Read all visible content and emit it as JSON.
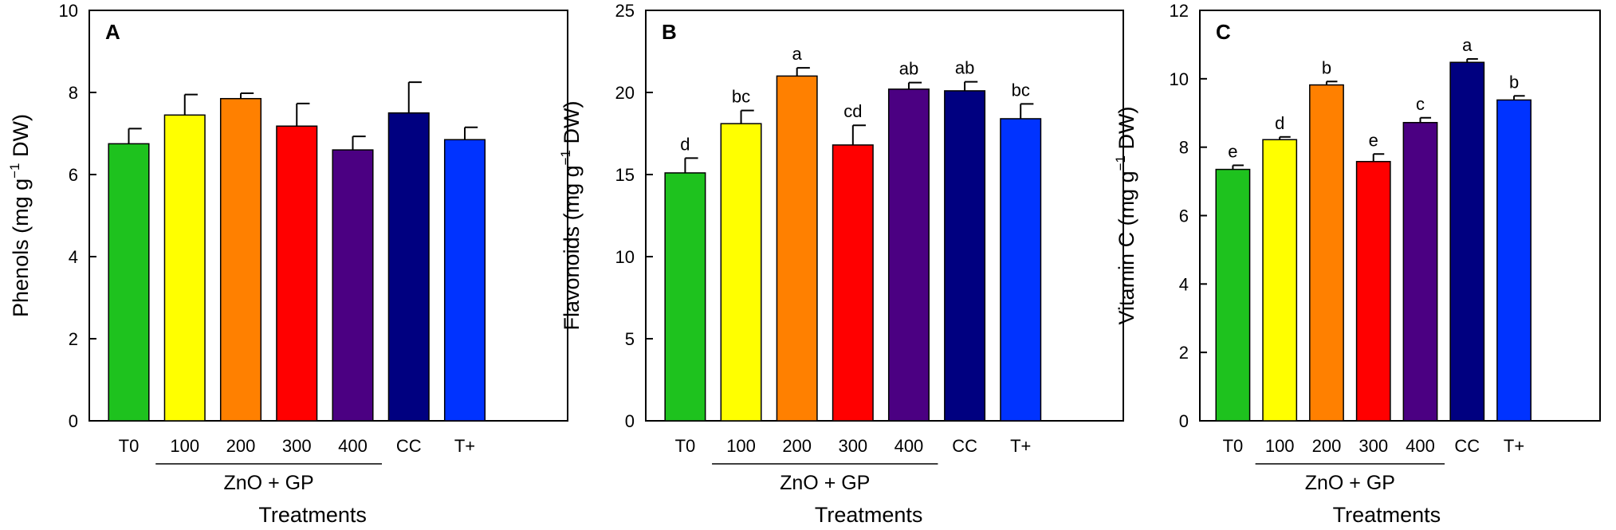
{
  "chart_data": [
    {
      "type": "bar",
      "panel": "A",
      "categories": [
        "T0",
        "100",
        "200",
        "300",
        "400",
        "CC",
        "T+"
      ],
      "values": [
        6.75,
        7.45,
        7.85,
        7.18,
        6.6,
        7.5,
        6.85
      ],
      "errors": [
        0.37,
        0.5,
        0.13,
        0.55,
        0.33,
        0.75,
        0.3
      ],
      "significance": [],
      "ylabel_prefix": "Phenols (mg g",
      "ylabel_sup": "−1",
      "ylabel_suffix": " DW)",
      "xlabel": "Treatments",
      "group_label": "ZnO + GP",
      "ylim": [
        0,
        10
      ],
      "yticks": [
        "0",
        "2",
        "4",
        "6",
        "8",
        "10"
      ]
    },
    {
      "type": "bar",
      "panel": "B",
      "categories": [
        "T0",
        "100",
        "200",
        "300",
        "400",
        "CC",
        "T+"
      ],
      "values": [
        15.1,
        18.1,
        21.0,
        16.8,
        20.2,
        20.1,
        18.4
      ],
      "errors": [
        0.9,
        0.8,
        0.5,
        1.2,
        0.4,
        0.55,
        0.9
      ],
      "significance": [
        "d",
        "bc",
        "a",
        "cd",
        "ab",
        "ab",
        "bc"
      ],
      "ylabel_prefix": "Flavonoids (mg g",
      "ylabel_sup": "−1",
      "ylabel_suffix": " DW)",
      "xlabel": "Treatments",
      "group_label": "ZnO + GP",
      "ylim": [
        0,
        25
      ],
      "yticks": [
        "0",
        "5",
        "10",
        "15",
        "20",
        "25"
      ]
    },
    {
      "type": "bar",
      "panel": "C",
      "categories": [
        "T0",
        "100",
        "200",
        "300",
        "400",
        "CC",
        "T+"
      ],
      "values": [
        7.35,
        8.22,
        9.82,
        7.58,
        8.72,
        10.48,
        9.38
      ],
      "errors": [
        0.12,
        0.08,
        0.1,
        0.22,
        0.14,
        0.1,
        0.12
      ],
      "significance": [
        "e",
        "d",
        "b",
        "e",
        "c",
        "a",
        "b"
      ],
      "ylabel_prefix": "Vitamin C (mg g",
      "ylabel_sup": "−1",
      "ylabel_suffix": " DW)",
      "xlabel": "Treatments",
      "group_label": "ZnO + GP",
      "ylim": [
        0,
        12
      ],
      "yticks": [
        "0",
        "2",
        "4",
        "6",
        "8",
        "10",
        "12"
      ]
    }
  ],
  "bar_colors": [
    "#1ec21e",
    "#ffff00",
    "#ff8000",
    "#ff0000",
    "#4b0082",
    "#000080",
    "#0033ff"
  ],
  "axis_color": "#000000"
}
